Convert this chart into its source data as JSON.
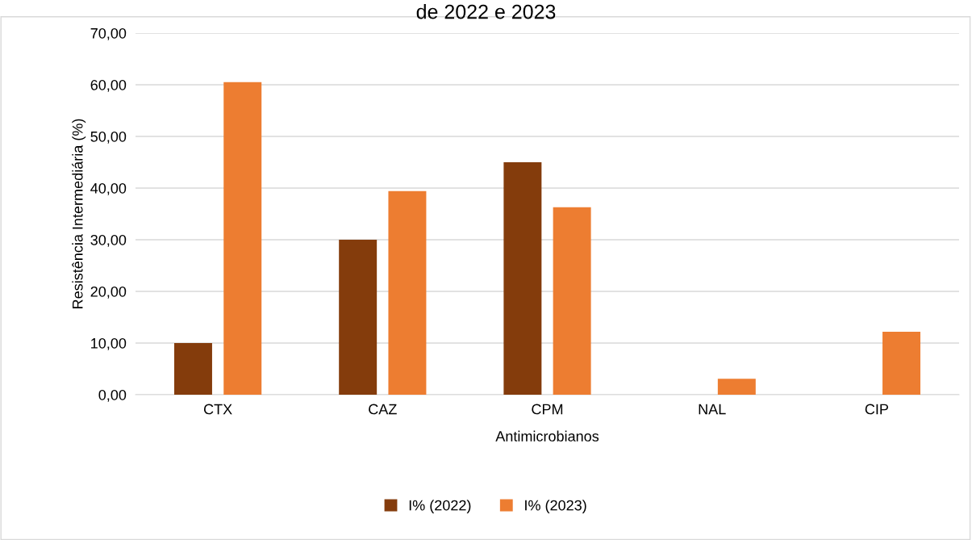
{
  "chart_data": {
    "type": "bar",
    "title": "de 2022 e 2023",
    "xlabel": "Antimicrobianos",
    "ylabel": "Resistência Intermediária (%)",
    "categories": [
      "CTX",
      "CAZ",
      "CPM",
      "NAL",
      "CIP"
    ],
    "series": [
      {
        "name": "I% (2022)",
        "color": "#843c0c",
        "values": [
          10,
          30,
          45,
          0,
          0
        ]
      },
      {
        "name": "I% (2023)",
        "color": "#ed7d31",
        "values": [
          60.5,
          39.4,
          36.3,
          3.1,
          12.2
        ]
      }
    ],
    "ylim": [
      0,
      70
    ],
    "yticks": [
      {
        "value": 0,
        "label": "0,00"
      },
      {
        "value": 10,
        "label": "10,00"
      },
      {
        "value": 20,
        "label": "20,00"
      },
      {
        "value": 30,
        "label": "30,00"
      },
      {
        "value": 40,
        "label": "40,00"
      },
      {
        "value": 50,
        "label": "50,00"
      },
      {
        "value": 60,
        "label": "60,00"
      },
      {
        "value": 70,
        "label": "70,00"
      }
    ],
    "grid": "y",
    "legend": "bottom"
  }
}
